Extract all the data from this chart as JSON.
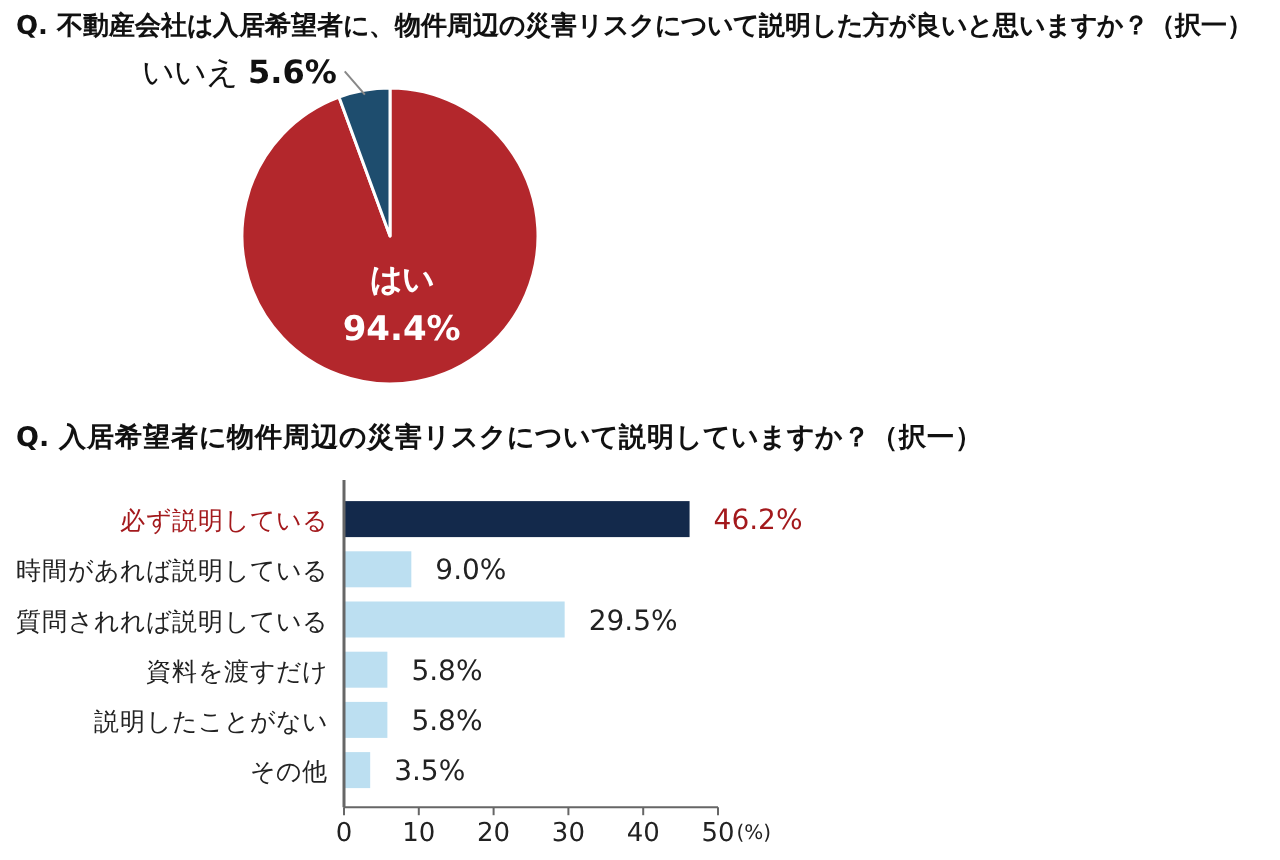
{
  "chart_data": [
    {
      "type": "pie",
      "title": "Q.  不動産会社は入居希望者に、物件周辺の災害リスクについて説明した方が良いと思いますか？（択一）",
      "categories": [
        "はい",
        "いいえ"
      ],
      "values": [
        94.4,
        5.6
      ],
      "colors": [
        "#b3272c",
        "#1e4d6e"
      ],
      "value_labels": [
        "94.4%",
        "5.6%"
      ]
    },
    {
      "type": "bar",
      "orientation": "horizontal",
      "title": "Q.  入居希望者に物件周辺の災害リスクについて説明していますか？（択一）",
      "categories": [
        "必ず説明している",
        "時間があれば説明している",
        "質問されれば説明している",
        "資料を渡すだけ",
        "説明したことがない",
        "その他"
      ],
      "values": [
        46.2,
        9.0,
        29.5,
        5.8,
        5.8,
        3.5
      ],
      "colors": [
        "#13294b",
        "#bcdff1",
        "#bcdff1",
        "#bcdff1",
        "#bcdff1",
        "#bcdff1"
      ],
      "value_labels": [
        "46.2%",
        "9.0%",
        "29.5%",
        "5.8%",
        "5.8%",
        "3.5%"
      ],
      "xlim": [
        0,
        50
      ],
      "xticks": [
        0,
        10,
        20,
        30,
        40,
        50
      ],
      "xlabel": "(%)"
    }
  ]
}
